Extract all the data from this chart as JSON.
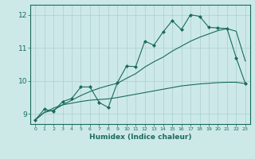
{
  "xlabel": "Humidex (Indice chaleur)",
  "bg_color": "#cce9e8",
  "grid_color": "#aacfcf",
  "line_color": "#1a6b5a",
  "xlim": [
    -0.5,
    23.5
  ],
  "ylim": [
    8.7,
    12.3
  ],
  "yticks": [
    9,
    10,
    11,
    12
  ],
  "xticks": [
    0,
    1,
    2,
    3,
    4,
    5,
    6,
    7,
    8,
    9,
    10,
    11,
    12,
    13,
    14,
    15,
    16,
    17,
    18,
    19,
    20,
    21,
    22,
    23
  ],
  "line1_x": [
    0,
    1,
    2,
    3,
    4,
    5,
    6,
    7,
    8,
    9,
    10,
    11,
    12,
    13,
    14,
    15,
    16,
    17,
    18,
    19,
    20,
    21,
    22,
    23
  ],
  "line1_y": [
    8.82,
    9.15,
    9.08,
    9.38,
    9.47,
    9.82,
    9.82,
    9.35,
    9.2,
    9.95,
    10.45,
    10.43,
    11.2,
    11.08,
    11.48,
    11.82,
    11.55,
    12.0,
    11.95,
    11.62,
    11.6,
    11.58,
    10.7,
    9.92
  ],
  "line2_x": [
    0,
    1,
    2,
    3,
    4,
    5,
    6,
    7,
    8,
    9,
    10,
    11,
    12,
    13,
    14,
    15,
    16,
    17,
    18,
    19,
    20,
    21,
    22,
    23
  ],
  "line2_y": [
    8.82,
    9.05,
    9.12,
    9.28,
    9.42,
    9.56,
    9.68,
    9.78,
    9.86,
    9.93,
    10.08,
    10.22,
    10.42,
    10.58,
    10.72,
    10.9,
    11.05,
    11.2,
    11.32,
    11.42,
    11.52,
    11.58,
    11.5,
    10.6
  ],
  "line3_x": [
    0,
    1,
    2,
    3,
    4,
    5,
    6,
    7,
    8,
    9,
    10,
    11,
    12,
    13,
    14,
    15,
    16,
    17,
    18,
    19,
    20,
    21,
    22,
    23
  ],
  "line3_y": [
    8.82,
    9.05,
    9.18,
    9.28,
    9.33,
    9.38,
    9.42,
    9.44,
    9.46,
    9.5,
    9.55,
    9.6,
    9.65,
    9.7,
    9.75,
    9.8,
    9.85,
    9.88,
    9.91,
    9.93,
    9.95,
    9.96,
    9.96,
    9.92
  ]
}
